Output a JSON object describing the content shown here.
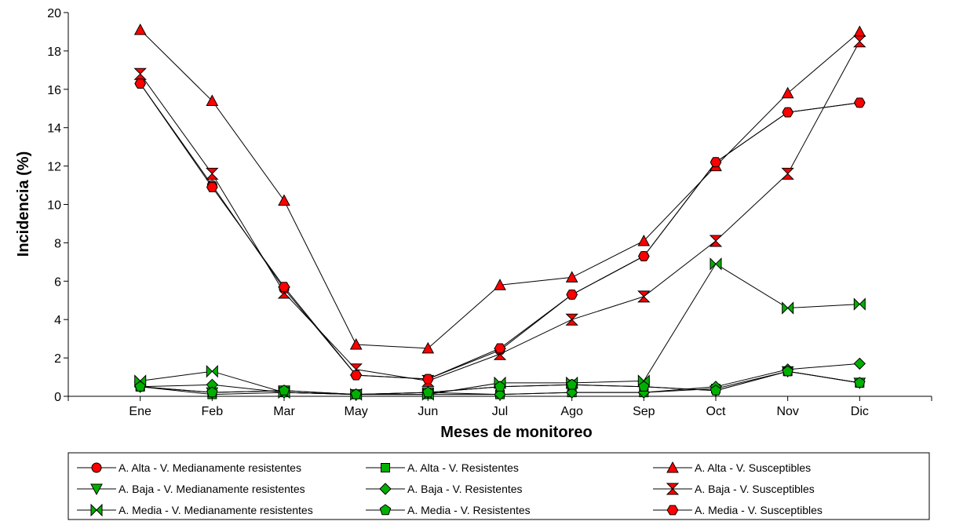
{
  "chart_data": {
    "type": "line",
    "xlabel": "Meses de monitoreo",
    "ylabel": "Incidencia (%)",
    "categories": [
      "Ene",
      "Feb",
      "Mar",
      "May",
      "Jun",
      "Jul",
      "Ago",
      "Sep",
      "Oct",
      "Nov",
      "Dic"
    ],
    "ylim": [
      0,
      20
    ],
    "yticks": [
      0,
      2,
      4,
      6,
      8,
      10,
      12,
      14,
      16,
      18,
      20
    ],
    "legend_position": "bottom",
    "colors": {
      "red": "#ff0000",
      "green": "#00b000",
      "line": "#000000"
    },
    "series": [
      {
        "name": "A. Alta - V. Medianamente resistentes",
        "marker": "circle",
        "color": "#ff0000",
        "values": [
          16.3,
          11.0,
          5.6,
          1.1,
          0.9,
          2.4,
          5.3,
          7.3,
          12.2,
          14.8,
          15.3
        ]
      },
      {
        "name": "A. Alta - V. Resistentes",
        "marker": "square",
        "color": "#00b000",
        "values": [
          0.5,
          0.1,
          0.2,
          0.1,
          0.1,
          0.1,
          0.2,
          0.2,
          0.4,
          1.3,
          0.7
        ]
      },
      {
        "name": "A. Alta - V. Susceptibles",
        "marker": "triangle-up",
        "color": "#ff0000",
        "values": [
          19.1,
          15.4,
          10.2,
          2.7,
          2.5,
          5.8,
          6.2,
          8.1,
          12.0,
          15.8,
          19.0
        ]
      },
      {
        "name": "A. Baja - V. Medianamente resistentes",
        "marker": "triangle-down",
        "color": "#00b000",
        "values": [
          0.5,
          0.2,
          0.3,
          0.1,
          0.2,
          0.5,
          0.6,
          0.5,
          0.3,
          1.3,
          0.7
        ]
      },
      {
        "name": "A. Baja - V. Resistentes",
        "marker": "diamond",
        "color": "#00b000",
        "values": [
          0.5,
          0.6,
          0.2,
          0.1,
          0.2,
          0.1,
          0.2,
          0.2,
          0.5,
          1.4,
          1.7
        ]
      },
      {
        "name": "A. Baja - V. Susceptibles",
        "marker": "hourglass",
        "color": "#ff0000",
        "values": [
          16.8,
          11.6,
          5.4,
          1.4,
          0.8,
          2.2,
          4.0,
          5.2,
          8.1,
          11.6,
          18.5
        ]
      },
      {
        "name": "A. Media - V. Medianamente resistentes",
        "marker": "bowtie",
        "color": "#00b000",
        "values": [
          0.8,
          1.3,
          0.2,
          0.1,
          0.1,
          0.7,
          0.7,
          0.8,
          6.9,
          4.6,
          4.8
        ]
      },
      {
        "name": "A. Media - V. Resistentes",
        "marker": "pentagon",
        "color": "#00b000",
        "values": [
          0.5,
          0.2,
          0.3,
          0.1,
          0.2,
          0.5,
          0.6,
          0.5,
          0.3,
          1.3,
          0.7
        ]
      },
      {
        "name": "A. Media - V. Susceptibles",
        "marker": "hexagon",
        "color": "#ff0000",
        "values": [
          16.3,
          10.9,
          5.7,
          1.1,
          0.9,
          2.5,
          5.3,
          7.3,
          12.2,
          14.8,
          15.3
        ]
      }
    ]
  }
}
